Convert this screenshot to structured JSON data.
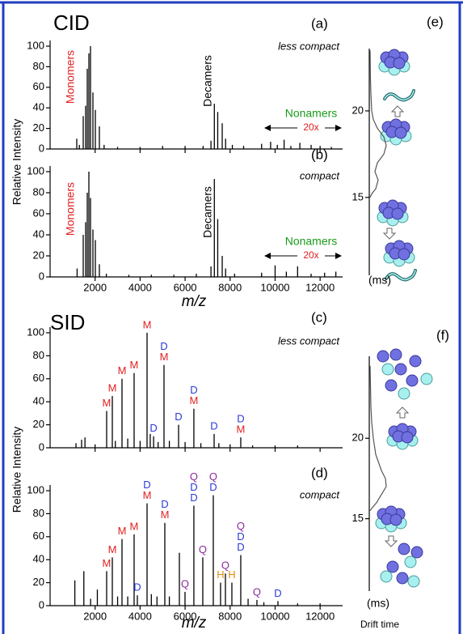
{
  "chart_data": [
    {
      "type": "spectrum",
      "title": "CID",
      "panel_label": "(a)",
      "subtitle": "less compact",
      "ylabel": "Relative Intensity",
      "color": "#000000",
      "xlim": [
        0,
        13000
      ],
      "ylim": [
        0,
        100
      ],
      "xticks": [
        2000,
        4000,
        6000,
        8000,
        10000,
        12000
      ],
      "show_xtick_labels": false,
      "yticks": [
        0,
        20,
        40,
        60,
        80,
        100
      ],
      "annotations": [
        {
          "text": "Monomers",
          "color": "#e02020"
        },
        {
          "text": "Decamers",
          "color": "#000000"
        },
        {
          "text": "Nonamers",
          "color": "#1a9a1a"
        },
        {
          "text": "20x",
          "color": "#e02020"
        }
      ],
      "x": [
        1185,
        1300,
        1472,
        1580,
        1652,
        1724,
        1795,
        1903,
        2011,
        2190,
        2400,
        3000,
        4000,
        5000,
        6000,
        6800,
        7150,
        7300,
        7450,
        7650,
        7800,
        8100,
        8600,
        9400,
        9800,
        10100,
        10400,
        10700,
        11100,
        11600,
        12000,
        12500
      ],
      "values": [
        10,
        4,
        32,
        42,
        78,
        93,
        100,
        55,
        38,
        22,
        4,
        2,
        2,
        3,
        3,
        3,
        8,
        44,
        36,
        25,
        10,
        4,
        3,
        5,
        7,
        4,
        9,
        3,
        6,
        4,
        3,
        2
      ]
    },
    {
      "type": "spectrum",
      "panel_label": "(b)",
      "subtitle": "compact",
      "xlabel": "m/z",
      "color": "#000000",
      "xlim": [
        0,
        13000
      ],
      "ylim": [
        0,
        100
      ],
      "xticks": [
        2000,
        4000,
        6000,
        8000,
        10000,
        12000
      ],
      "show_xtick_labels": true,
      "yticks": [
        0,
        20,
        40,
        60,
        80,
        100
      ],
      "annotations": [
        {
          "text": "Monomers",
          "color": "#e02020"
        },
        {
          "text": "Decamers",
          "color": "#000000"
        },
        {
          "text": "Nonamers",
          "color": "#1a9a1a"
        },
        {
          "text": "20x",
          "color": "#e02020"
        }
      ],
      "x": [
        1200,
        1472,
        1580,
        1652,
        1724,
        1795,
        1903,
        2011,
        2190,
        2500,
        3500,
        4500,
        5500,
        6500,
        7150,
        7300,
        7450,
        7650,
        7800,
        8200,
        9400,
        10000,
        10500,
        11000,
        11600,
        12200,
        12700
      ],
      "values": [
        8,
        40,
        52,
        80,
        100,
        75,
        45,
        35,
        12,
        3,
        2,
        2,
        2,
        3,
        10,
        93,
        55,
        20,
        8,
        3,
        4,
        11,
        5,
        10,
        3,
        4,
        5
      ]
    },
    {
      "type": "spectrum",
      "title": "SID",
      "panel_label": "(c)",
      "subtitle": "less compact",
      "ylabel": "Relative Intensity",
      "color": "#000000",
      "xlim": [
        0,
        13000
      ],
      "ylim": [
        0,
        100
      ],
      "xticks": [
        2000,
        4000,
        6000,
        8000,
        10000,
        12000
      ],
      "show_xtick_labels": false,
      "yticks": [
        0,
        20,
        40,
        60,
        80,
        100
      ],
      "label_colors": {
        "M": "#e02020",
        "D": "#2a3ad8",
        "Q": "#8a2a9a",
        "H": "#e08a10"
      },
      "x": [
        1150,
        1400,
        1550,
        2000,
        2513,
        2765,
        2900,
        3196,
        3450,
        3734,
        4000,
        4309,
        4450,
        4600,
        4800,
        5063,
        5300,
        5710,
        6000,
        6390,
        6700,
        7290,
        7500,
        8000,
        8474,
        9000,
        10000,
        11000
      ],
      "values": [
        4,
        7,
        9,
        3,
        32,
        45,
        6,
        60,
        8,
        65,
        6,
        100,
        12,
        10,
        5,
        72,
        6,
        20,
        5,
        34,
        4,
        12,
        4,
        3,
        9,
        2,
        2,
        2
      ],
      "peak_labels": [
        null,
        null,
        null,
        null,
        [
          "M"
        ],
        [
          "M"
        ],
        null,
        [
          "M"
        ],
        null,
        [
          "M"
        ],
        null,
        [
          "M"
        ],
        null,
        [
          "D"
        ],
        null,
        [
          "D",
          "M"
        ],
        null,
        [
          "D"
        ],
        null,
        [
          "D",
          "M"
        ],
        null,
        [
          "D"
        ],
        null,
        null,
        [
          "D",
          "M"
        ],
        null,
        null,
        null
      ]
    },
    {
      "type": "spectrum",
      "panel_label": "(d)",
      "subtitle": "compact",
      "ylabel": null,
      "xlabel": "m/z",
      "color": "#000000",
      "xlim": [
        0,
        13000
      ],
      "ylim": [
        0,
        100
      ],
      "xticks": [
        2000,
        4000,
        6000,
        8000,
        10000,
        12000
      ],
      "show_xtick_labels": true,
      "yticks": [
        0,
        20,
        40,
        60,
        80,
        100
      ],
      "label_colors": {
        "M": "#e02020",
        "D": "#2a3ad8",
        "Q": "#8a2a9a",
        "H": "#e08a10"
      },
      "x": [
        1100,
        1500,
        1800,
        2100,
        2513,
        2765,
        3000,
        3196,
        3450,
        3734,
        3878,
        4309,
        4500,
        4750,
        5099,
        5300,
        5745,
        5996,
        6390,
        6786,
        7253,
        7576,
        7792,
        8079,
        8474,
        8800,
        9192,
        9500,
        10126,
        11000,
        12000
      ],
      "values": [
        22,
        30,
        6,
        14,
        30,
        42,
        8,
        58,
        8,
        62,
        9,
        89,
        10,
        8,
        72,
        8,
        46,
        12,
        87,
        42,
        96,
        20,
        28,
        20,
        44,
        6,
        5,
        3,
        4,
        2,
        2
      ],
      "peak_labels": [
        null,
        null,
        null,
        null,
        [
          "M"
        ],
        [
          "M"
        ],
        null,
        [
          "M"
        ],
        null,
        [
          "M"
        ],
        [
          "D"
        ],
        [
          "D",
          "M"
        ],
        null,
        null,
        [
          "D",
          "M"
        ],
        null,
        null,
        [
          "Q"
        ],
        [
          "Q",
          "D",
          "D"
        ],
        [
          "Q"
        ],
        [
          "Q",
          "D"
        ],
        [
          "H"
        ],
        [
          "Q"
        ],
        [
          "H"
        ],
        [
          "Q",
          "D",
          "D"
        ],
        null,
        [
          "Q"
        ],
        null,
        [
          "D"
        ],
        null,
        null
      ]
    },
    {
      "type": "drift",
      "panel_label": "(e)",
      "xlabel": "(ms)",
      "color": "#555555",
      "xlim": [
        10.5,
        23.6
      ],
      "xticks": [
        15,
        20
      ],
      "x": [
        23.5,
        22,
        21,
        20,
        19.5,
        19,
        18.5,
        18,
        17.5,
        17,
        16.5,
        16,
        15.5,
        15.2,
        15
      ],
      "values": [
        0,
        0.02,
        0.05,
        0.1,
        0.2,
        0.45,
        0.85,
        1,
        0.85,
        0.45,
        0.3,
        0.5,
        0.35,
        0.1,
        0
      ]
    },
    {
      "type": "drift",
      "panel_label": "(f)",
      "xlabel": "(ms)",
      "caption": "Drift time",
      "color": "#555555",
      "xlim": [
        10.5,
        25.1
      ],
      "xticks": [
        15,
        20
      ],
      "x": [
        24.5,
        22,
        21,
        20,
        19,
        18,
        17.5,
        17,
        16.5,
        16,
        15.7,
        15.5
      ],
      "values": [
        0,
        0.05,
        0.1,
        0.2,
        0.35,
        0.7,
        0.95,
        1,
        0.7,
        0.4,
        0.15,
        0
      ]
    }
  ]
}
